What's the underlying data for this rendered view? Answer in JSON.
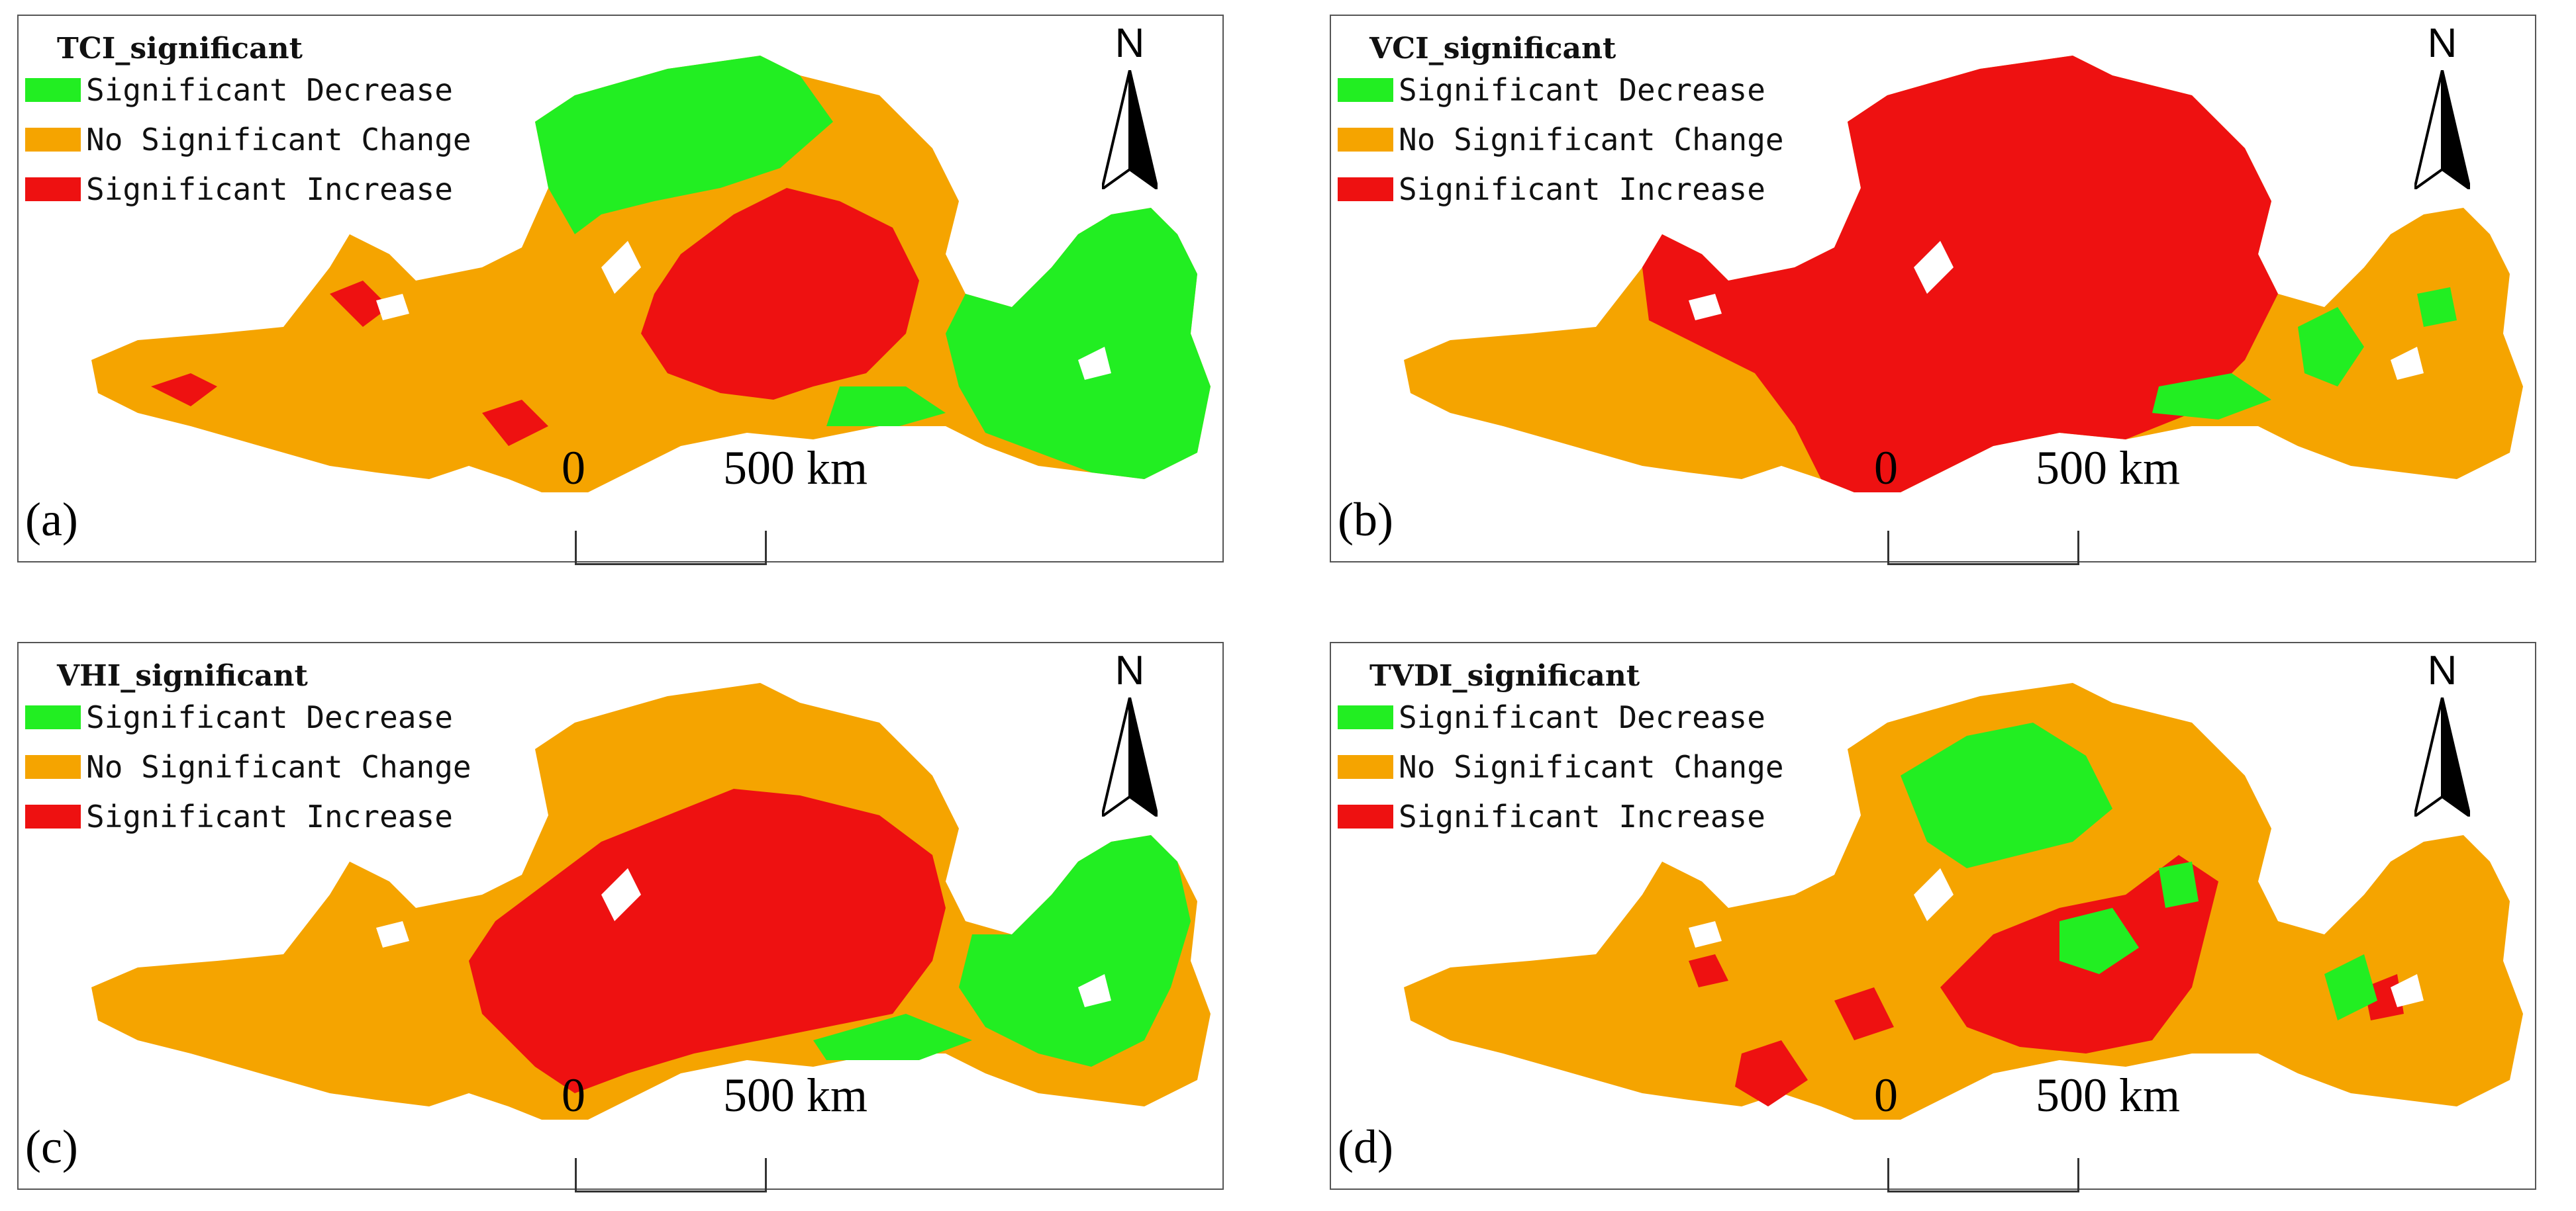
{
  "legend": {
    "decrease": {
      "label": "Significant Decrease",
      "color": "#22ee22"
    },
    "nochange": {
      "label": "No Significant Change",
      "color": "#f5a400"
    },
    "increase": {
      "label": "Significant Increase",
      "color": "#ee1111"
    }
  },
  "north_label": "N",
  "scale": {
    "zero": "0",
    "distance": "500 km"
  },
  "panels": [
    {
      "tag": "(a)",
      "title": "TCI_significant"
    },
    {
      "tag": "(b)",
      "title": "VCI_significant"
    },
    {
      "tag": "(c)",
      "title": "VHI_significant"
    },
    {
      "tag": "(d)",
      "title": "TVDI_significant"
    }
  ]
}
